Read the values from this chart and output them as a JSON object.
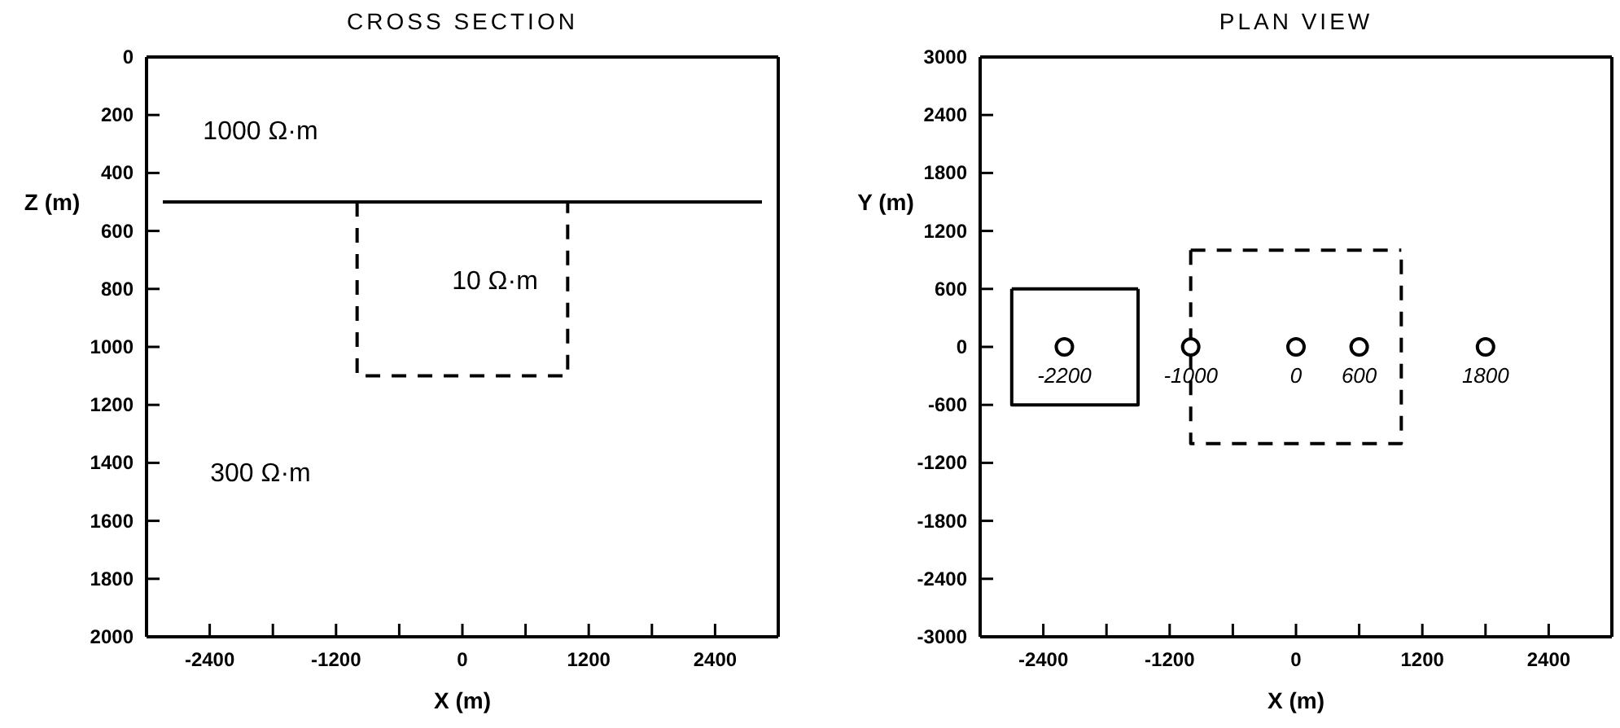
{
  "chart_data": [
    {
      "type": "line",
      "title": "CROSS SECTION",
      "xlabel": "X (m)",
      "ylabel": "Z (m)",
      "xlim": [
        -3000,
        3000
      ],
      "ylim": [
        2000,
        0
      ],
      "xticks": [
        -2400,
        {
          "value": -1800,
          "label": null
        },
        -1200,
        {
          "value": -600,
          "label": null
        },
        0,
        {
          "value": 600,
          "label": null
        },
        1200,
        {
          "value": 1800,
          "label": null
        },
        2400
      ],
      "yticks": [
        0,
        200,
        400,
        600,
        800,
        1000,
        1200,
        1400,
        1600,
        1800,
        2000
      ],
      "legend": false,
      "grid": false,
      "ref_lines": [
        {
          "axis": "y",
          "value": 500,
          "color": "#000000",
          "line_style": "solid"
        }
      ],
      "series": [
        {
          "type": "line",
          "name": "10 Ω·m",
          "color": "#000000",
          "line_style": "dashed",
          "x": [
            -1000,
            -1000,
            1000,
            1000
          ],
          "values": [
            500,
            1100,
            1100,
            500
          ]
        }
      ],
      "annotations": [
        "1000 Ω·m",
        "300 Ω·m"
      ]
    },
    {
      "type": "line",
      "title": "PLAN VIEW",
      "xlabel": "X (m)",
      "ylabel": "Y (m)",
      "xlim": [
        -3000,
        3000
      ],
      "ylim": [
        -3000,
        3000
      ],
      "xticks": [
        -2400,
        {
          "value": -1800,
          "label": null
        },
        -1200,
        {
          "value": -600,
          "label": null
        },
        0,
        {
          "value": 600,
          "label": null
        },
        1200,
        {
          "value": 1800,
          "label": null
        },
        2400
      ],
      "yticks": [
        -3000,
        -2400,
        -1800,
        -1200,
        -600,
        0,
        600,
        1200,
        1800,
        2400,
        3000
      ],
      "legend": false,
      "grid": false,
      "series": [
        {
          "type": "line",
          "color": "#000000",
          "line_style": "solid",
          "x": [
            -2700,
            -2700,
            -1500,
            -1500
          ],
          "values": [
            600,
            -600,
            -600,
            600
          ]
        },
        {
          "type": "line",
          "color": "#000000",
          "line_style": "solid",
          "x": [
            -2700,
            -1500
          ],
          "values": [
            600,
            600
          ]
        },
        {
          "type": "line",
          "color": "#000000",
          "line_style": "dashed",
          "x": [
            -1000,
            -1000,
            1000,
            1000
          ],
          "values": [
            1000,
            -1000,
            -1000,
            1000
          ]
        },
        {
          "type": "line",
          "color": "#000000",
          "line_style": "dashed",
          "x": [
            -1000,
            1000
          ],
          "values": [
            1000,
            1000
          ]
        },
        {
          "type": "scatter",
          "color": "#000000",
          "marker": "circle",
          "x": [
            -2200,
            -1000,
            0,
            600,
            1800
          ],
          "values": [
            0,
            0,
            0,
            0,
            0
          ]
        }
      ],
      "annotations": [
        {
          "text": "-2200",
          "x": -2200,
          "y": 0
        },
        {
          "text": "-1000",
          "x": -1000,
          "y": 0
        },
        {
          "text": "0",
          "x": 0,
          "y": 0
        },
        {
          "text": "600",
          "x": 600,
          "y": 0
        },
        {
          "text": "1800",
          "x": 1800,
          "y": 0
        }
      ]
    }
  ]
}
